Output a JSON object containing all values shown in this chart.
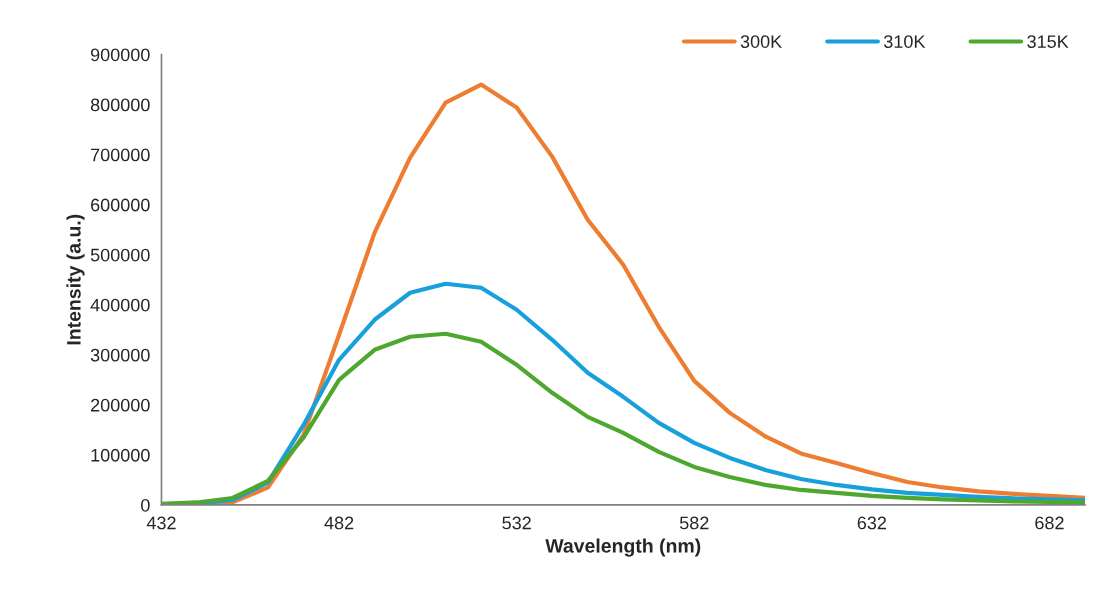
{
  "chart_data": {
    "type": "line",
    "xlabel": "Wavelength (nm)",
    "ylabel": "Intensity (a.u.)",
    "x": [
      432,
      442,
      452,
      462,
      472,
      482,
      492,
      502,
      512,
      522,
      532,
      542,
      552,
      562,
      572,
      582,
      592,
      602,
      612,
      622,
      632,
      642,
      652,
      662,
      672,
      682,
      692
    ],
    "series": [
      {
        "name": "300K",
        "color": "#ed7d31",
        "values": [
          0,
          1000,
          5000,
          35000,
          140000,
          340000,
          544000,
          694000,
          804000,
          840000,
          794000,
          696000,
          570000,
          480000,
          356000,
          248000,
          184000,
          137000,
          103000,
          84000,
          64000,
          46000,
          35000,
          27000,
          22000,
          18000,
          14000
        ]
      },
      {
        "name": "310K",
        "color": "#17a0db",
        "values": [
          0,
          3000,
          10000,
          45000,
          160000,
          290000,
          370000,
          424000,
          442000,
          434000,
          390000,
          330000,
          264000,
          216000,
          164000,
          124000,
          94000,
          70000,
          52000,
          40000,
          31000,
          24000,
          20000,
          16000,
          13000,
          11000,
          9000
        ]
      },
      {
        "name": "315K",
        "color": "#4ea72e",
        "values": [
          2000,
          5000,
          14000,
          48000,
          135000,
          250000,
          310000,
          336000,
          342000,
          326000,
          280000,
          224000,
          176000,
          144000,
          106000,
          76000,
          56000,
          40000,
          30000,
          24000,
          18000,
          14000,
          11000,
          9000,
          7000,
          6000,
          5000
        ]
      }
    ],
    "xlim": [
      432,
      692
    ],
    "xticks": [
      432,
      482,
      532,
      582,
      632,
      682
    ],
    "ylim": [
      0,
      900000
    ],
    "yticks": [
      0,
      100000,
      200000,
      300000,
      400000,
      500000,
      600000,
      700000,
      800000,
      900000
    ],
    "grid": false,
    "legend": "top right",
    "marker": "none",
    "line_style": "solid"
  }
}
